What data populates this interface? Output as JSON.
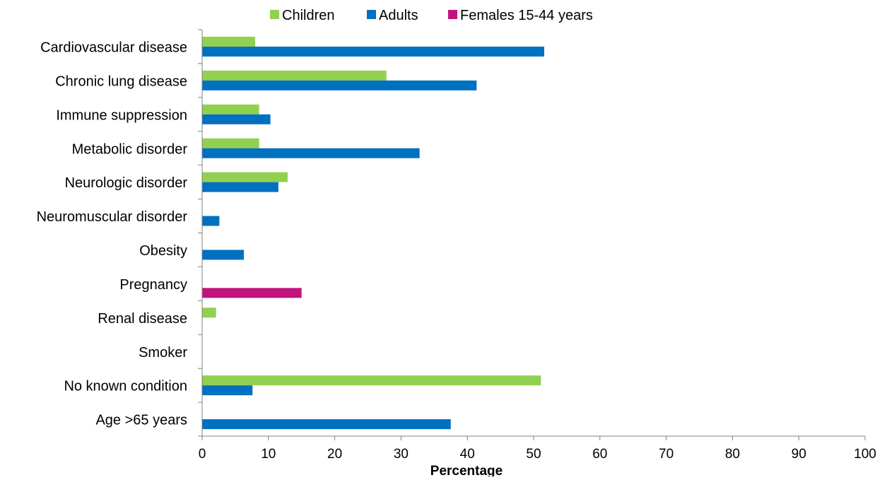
{
  "chart_data": {
    "type": "bar",
    "orientation": "horizontal",
    "title": "",
    "xlabel": "Percentage",
    "ylabel": "",
    "xlim": [
      0,
      100
    ],
    "x_ticks": [
      "0",
      "10",
      "20",
      "30",
      "40",
      "50",
      "60",
      "70",
      "80",
      "90",
      "100"
    ],
    "grid": false,
    "legend": {
      "position": "top"
    },
    "categories": [
      "Cardiovascular disease",
      "Chronic lung disease",
      "Immune suppression",
      "Metabolic disorder",
      "Neurologic disorder",
      "Neuromuscular disorder",
      "Obesity",
      "Pregnancy",
      "Renal disease",
      "Smoker",
      "No known condition",
      "Age >65 years"
    ],
    "series": [
      {
        "name": "Children",
        "color": "#92d050",
        "values": [
          8,
          27.8,
          8.6,
          8.6,
          12.9,
          null,
          null,
          null,
          2.1,
          null,
          51.1,
          null
        ]
      },
      {
        "name": "Adults",
        "color": "#0070c0",
        "values": [
          51.6,
          41.4,
          10.3,
          32.8,
          11.5,
          2.6,
          6.3,
          null,
          null,
          null,
          7.6,
          37.5
        ]
      },
      {
        "name": "Females 15-44 years",
        "color": "#c0137c",
        "values": [
          null,
          null,
          null,
          null,
          null,
          null,
          null,
          15.0,
          null,
          null,
          null,
          null
        ]
      }
    ]
  }
}
